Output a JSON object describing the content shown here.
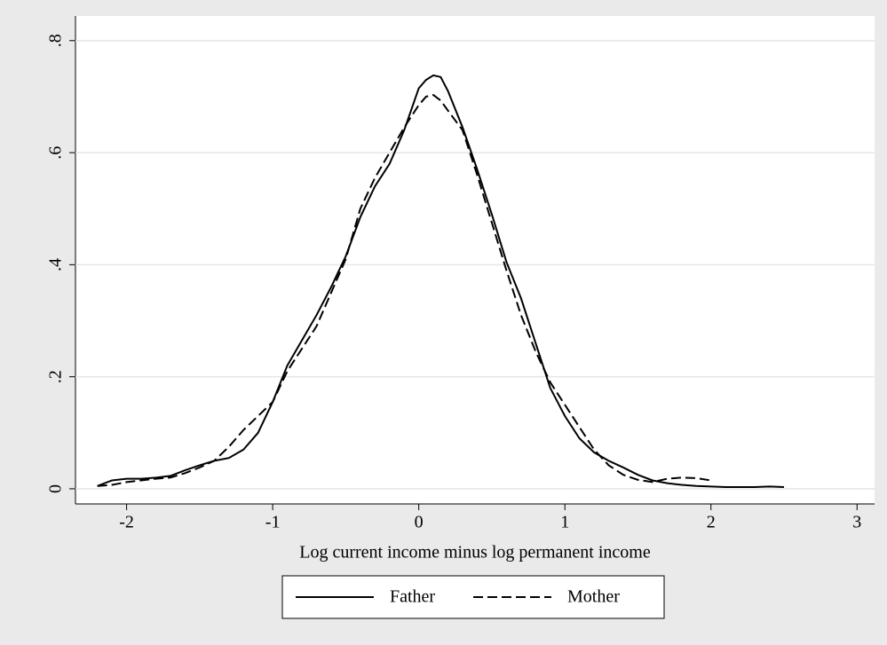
{
  "chart_data": {
    "type": "line",
    "xlabel": "Log current income minus log permanent income",
    "x": [
      -2.2,
      -2.1,
      -2.0,
      -1.9,
      -1.8,
      -1.7,
      -1.6,
      -1.5,
      -1.4,
      -1.3,
      -1.2,
      -1.1,
      -1.0,
      -0.9,
      -0.8,
      -0.7,
      -0.6,
      -0.5,
      -0.4,
      -0.3,
      -0.2,
      -0.1,
      0.0,
      0.05,
      0.1,
      0.15,
      0.2,
      0.3,
      0.4,
      0.5,
      0.6,
      0.7,
      0.8,
      0.9,
      1.0,
      1.1,
      1.2,
      1.3,
      1.4,
      1.5,
      1.6,
      1.7,
      1.8,
      1.9,
      2.0,
      2.1,
      2.2,
      2.3,
      2.4,
      2.5
    ],
    "series": [
      {
        "name": "Father",
        "color": "#000000",
        "dash": "solid",
        "values": [
          0.005,
          0.015,
          0.018,
          0.018,
          0.02,
          0.023,
          0.033,
          0.042,
          0.05,
          0.055,
          0.07,
          0.1,
          0.155,
          0.22,
          0.265,
          0.31,
          0.36,
          0.415,
          0.485,
          0.54,
          0.58,
          0.64,
          0.715,
          0.73,
          0.738,
          0.735,
          0.71,
          0.645,
          0.57,
          0.49,
          0.405,
          0.34,
          0.26,
          0.18,
          0.13,
          0.09,
          0.065,
          0.05,
          0.038,
          0.025,
          0.015,
          0.01,
          0.007,
          0.005,
          0.004,
          0.003,
          0.003,
          0.003,
          0.004,
          0.003
        ]
      },
      {
        "name": "Mother",
        "color": "#000000",
        "dash": "dashed",
        "values": [
          0.005,
          0.007,
          0.012,
          0.015,
          0.018,
          0.02,
          0.028,
          0.038,
          0.05,
          0.075,
          0.105,
          0.13,
          0.155,
          0.21,
          0.25,
          0.29,
          0.35,
          0.41,
          0.5,
          0.555,
          0.6,
          0.645,
          0.685,
          0.7,
          0.703,
          0.693,
          0.675,
          0.64,
          0.56,
          0.475,
          0.39,
          0.31,
          0.245,
          0.19,
          0.15,
          0.11,
          0.07,
          0.042,
          0.025,
          0.016,
          0.012,
          0.018,
          0.02,
          0.019,
          0.015,
          null,
          null,
          null,
          null,
          null
        ]
      }
    ],
    "xlim": [
      -2.35,
      3.12
    ],
    "ylim": [
      -0.027,
      0.844
    ],
    "xticks": [
      -2,
      -1,
      0,
      1,
      2,
      3
    ],
    "yticks": [
      0,
      {
        "value": 0.2,
        "label": ".2"
      },
      {
        "value": 0.4,
        "label": ".4"
      },
      {
        "value": 0.6,
        "label": ".6"
      },
      {
        "value": 0.8,
        "label": ".8"
      }
    ],
    "grid": true
  }
}
